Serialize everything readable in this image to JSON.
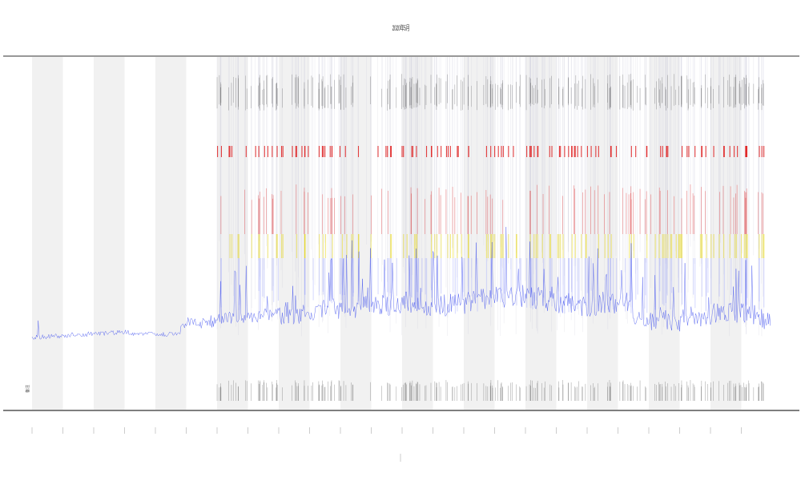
{
  "title": "2020年5月",
  "legend": {
    "label": "备注"
  },
  "colors": {
    "signal": "#3344ee",
    "band": "#f1f1f1",
    "axis": "#777777",
    "alert_red": "#e02020",
    "alert_yellow": "#e8d800",
    "event_mark": "#333333"
  }
}
